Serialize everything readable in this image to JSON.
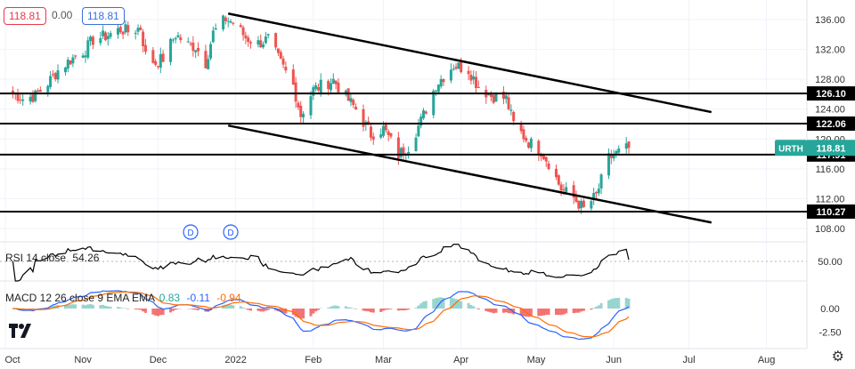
{
  "header": {
    "last_price": "118.81",
    "change": "0.00",
    "ask_price": "118.81"
  },
  "symbol": "URTH",
  "colors": {
    "up": "#26a69a",
    "down": "#ef5350",
    "level": "#000000",
    "rsi": "#000000",
    "macd": "#2962ff",
    "signal": "#ff6d00",
    "tag": "#26a69a",
    "dividend": "#2962ff"
  },
  "dividend_marker": "D",
  "rsi": {
    "label": "RSI 14 close",
    "value": "54.26",
    "ticks": [
      "50.00"
    ]
  },
  "macd": {
    "label": "MACD 12 26 close 9 EMA EMA",
    "hist_value": "0.83",
    "macd_value": "-0.11",
    "signal_value": "-0.94",
    "ticks": [
      "0.00",
      "-2.50"
    ]
  },
  "price_axis": {
    "ticks": [
      "136.00",
      "132.00",
      "128.00",
      "124.00",
      "120.00",
      "116.00",
      "112.00",
      "108.00"
    ]
  },
  "time_axis": {
    "ticks": [
      "Oct",
      "Nov",
      "Dec",
      "2022",
      "Feb",
      "Mar",
      "Apr",
      "May",
      "Jun",
      "Jul",
      "Aug"
    ]
  },
  "levels": [
    {
      "label": "126.10",
      "price": 126.1
    },
    {
      "label": "122.06",
      "price": 122.06
    },
    {
      "label": "117.91",
      "price": 117.91
    },
    {
      "label": "110.27",
      "price": 110.27
    }
  ],
  "chart_data": {
    "type": "candlestick",
    "title": "URTH",
    "x_range": [
      "2021-10-01",
      "2022-08-15"
    ],
    "ylim": [
      107,
      138
    ],
    "levels": [
      126.1,
      122.06,
      117.91,
      110.27
    ],
    "current_price": 118.81,
    "trendlines": [
      {
        "from": [
          "2021-12-29",
          136.8
        ],
        "to": [
          "2022-07-10",
          123.6
        ]
      },
      {
        "from": [
          "2021-12-29",
          121.8
        ],
        "to": [
          "2022-07-10",
          108.8
        ]
      }
    ],
    "dividends": [
      "2021-12-14",
      "2021-12-30"
    ],
    "anchors": [
      [
        "2021-10-04",
        126.2
      ],
      [
        "2021-10-08",
        125.4
      ],
      [
        "2021-10-13",
        125.8
      ],
      [
        "2021-10-18",
        127.5
      ],
      [
        "2021-10-22",
        129.2
      ],
      [
        "2021-10-27",
        130.6
      ],
      [
        "2021-11-02",
        132.0
      ],
      [
        "2021-11-05",
        133.3
      ],
      [
        "2021-11-10",
        133.8
      ],
      [
        "2021-11-16",
        134.7
      ],
      [
        "2021-11-19",
        134.4
      ],
      [
        "2021-11-24",
        134.9
      ],
      [
        "2021-11-26",
        131.2
      ],
      [
        "2021-11-30",
        130.2
      ],
      [
        "2021-12-03",
        130.8
      ],
      [
        "2021-12-08",
        134.0
      ],
      [
        "2021-12-13",
        132.6
      ],
      [
        "2021-12-16",
        132.4
      ],
      [
        "2021-12-20",
        130.2
      ],
      [
        "2021-12-23",
        134.2
      ],
      [
        "2021-12-28",
        136.1
      ],
      [
        "2021-12-31",
        135.6
      ],
      [
        "2022-01-05",
        133.6
      ],
      [
        "2022-01-10",
        132.8
      ],
      [
        "2022-01-14",
        133.4
      ],
      [
        "2022-01-19",
        130.1
      ],
      [
        "2022-01-24",
        127.2
      ],
      [
        "2022-01-27",
        123.2
      ],
      [
        "2022-02-01",
        126.6
      ],
      [
        "2022-02-04",
        127.1
      ],
      [
        "2022-02-09",
        127.9
      ],
      [
        "2022-02-14",
        125.6
      ],
      [
        "2022-02-18",
        124.0
      ],
      [
        "2022-02-24",
        120.6
      ],
      [
        "2022-03-01",
        121.4
      ],
      [
        "2022-03-07",
        117.9
      ],
      [
        "2022-03-11",
        119.0
      ],
      [
        "2022-03-16",
        122.4
      ],
      [
        "2022-03-22",
        127.3
      ],
      [
        "2022-03-29",
        129.9
      ],
      [
        "2022-04-04",
        129.3
      ],
      [
        "2022-04-08",
        127.0
      ],
      [
        "2022-04-13",
        125.8
      ],
      [
        "2022-04-19",
        125.4
      ],
      [
        "2022-04-22",
        122.0
      ],
      [
        "2022-04-28",
        119.6
      ],
      [
        "2022-05-03",
        118.4
      ],
      [
        "2022-05-06",
        116.8
      ],
      [
        "2022-05-11",
        113.3
      ],
      [
        "2022-05-16",
        112.1
      ],
      [
        "2022-05-20",
        110.6
      ],
      [
        "2022-05-25",
        112.4
      ],
      [
        "2022-05-30",
        117.4
      ],
      [
        "2022-06-03",
        118.2
      ],
      [
        "2022-06-07",
        118.81
      ]
    ]
  }
}
